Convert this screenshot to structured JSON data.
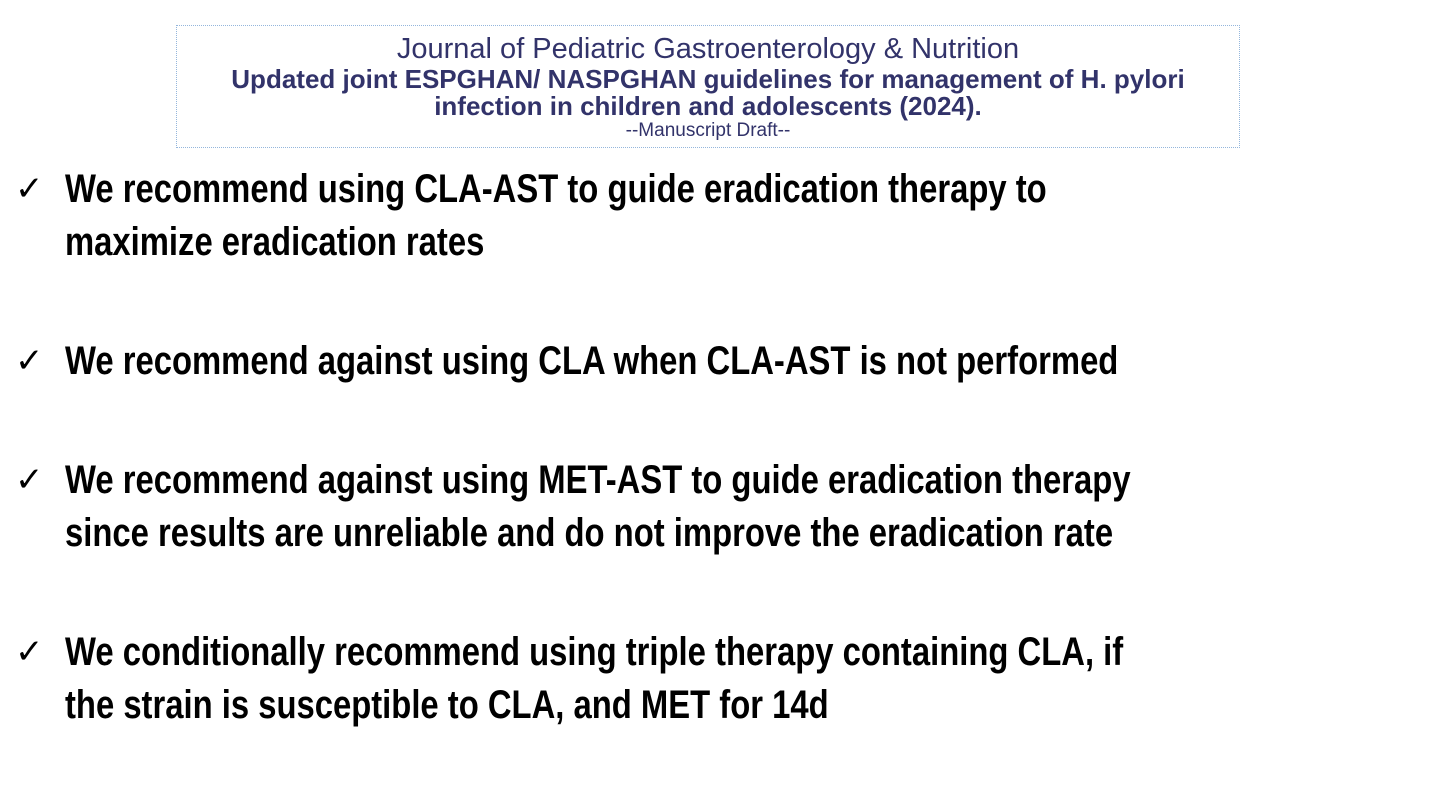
{
  "header": {
    "journal_title": "Journal of Pediatric Gastroenterology & Nutrition",
    "article_title": "Updated joint ESPGHAN/ NASPGHAN guidelines for management of H. pylori\ninfection in children and adolescents (2024).",
    "manuscript_status": "--Manuscript Draft--",
    "text_color": "#32336a",
    "border_color": "#94b6dc"
  },
  "bullets": {
    "marker": "✓",
    "marker_color": "#000000",
    "text_color": "#000000",
    "items": [
      {
        "text": "We recommend using CLA-AST to guide eradication therapy to\nmaximize eradication rates"
      },
      {
        "text": "We recommend against using CLA when CLA-AST is not performed"
      },
      {
        "text": "We recommend against using MET-AST to guide eradication therapy\nsince results are unreliable and do not improve the eradication rate"
      },
      {
        "text": "We conditionally recommend using triple therapy containing CLA, if\nthe strain is susceptible to CLA, and MET for 14d"
      }
    ]
  }
}
